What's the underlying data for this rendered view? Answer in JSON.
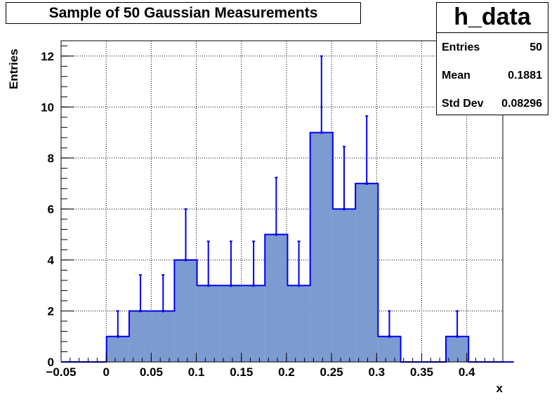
{
  "chart_data": {
    "type": "histogram",
    "title": "Sample of 50 Gaussian Measurements",
    "xlabel": "x",
    "ylabel": "Entries",
    "xlim": [
      -0.05,
      0.44
    ],
    "ylim": [
      0,
      12.6
    ],
    "x_ticks": [
      "−0.05",
      "0",
      "0.05",
      "0.1",
      "0.15",
      "0.2",
      "0.25",
      "0.3",
      "0.35",
      "0.4"
    ],
    "x_tick_values": [
      -0.05,
      0,
      0.05,
      0.1,
      0.15,
      0.2,
      0.25,
      0.3,
      0.35,
      0.4
    ],
    "y_ticks": [
      "0",
      "2",
      "4",
      "6",
      "8",
      "10",
      "12"
    ],
    "y_tick_values": [
      0,
      2,
      4,
      6,
      8,
      10,
      12
    ],
    "grid": true,
    "fill_color": "#7b9bd1",
    "line_color": "#0000ee",
    "bin_edges": [
      -0.0498,
      -0.0247,
      0.0004,
      0.0255,
      0.0506,
      0.0757,
      0.1008,
      0.1259,
      0.151,
      0.1761,
      0.2012,
      0.2263,
      0.2514,
      0.2765,
      0.3016,
      0.3267,
      0.3518,
      0.3769,
      0.402,
      0.4271,
      0.4522
    ],
    "counts": [
      0,
      0,
      1,
      2,
      2,
      4,
      3,
      3,
      3,
      5,
      3,
      9,
      6,
      7,
      1,
      0,
      0,
      1,
      0,
      0
    ],
    "errors": [
      0,
      0,
      1,
      1.414,
      1.414,
      2,
      1.732,
      1.732,
      1.732,
      2.236,
      1.732,
      3,
      2.449,
      2.646,
      1,
      0,
      0,
      1,
      0,
      0
    ]
  },
  "stats": {
    "name": "h_data",
    "rows": [
      {
        "label": "Entries",
        "value": "50"
      },
      {
        "label": "Mean",
        "value": "0.1881"
      },
      {
        "label": "Std Dev",
        "value": "0.08296"
      }
    ]
  }
}
